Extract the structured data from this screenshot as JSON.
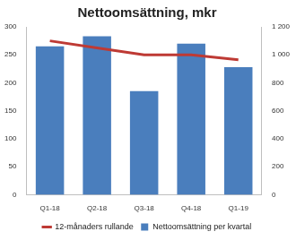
{
  "chart_data": {
    "type": "bar",
    "title": "Nettoomsättning, mkr",
    "categories": [
      "Q1-18",
      "Q2-18",
      "Q3-18",
      "Q4-18",
      "Q1-19"
    ],
    "series": [
      {
        "name": "Nettoomsättning per kvartal",
        "type": "bar",
        "color": "#4a7ebd",
        "values": [
          265,
          283,
          185,
          270,
          228
        ]
      },
      {
        "name": "12-månaders rullande",
        "type": "line",
        "color": "#be3a34",
        "axis": "y2",
        "values": [
          1100,
          1050,
          1000,
          1000,
          965
        ]
      }
    ],
    "ylim": [
      0,
      300
    ],
    "yticks": [
      0,
      50,
      100,
      150,
      200,
      250,
      300
    ],
    "y2lim": [
      0,
      1200
    ],
    "y2ticks": [
      0,
      200,
      400,
      600,
      800,
      {
        "value": 1000,
        "label": "1 000"
      },
      {
        "value": 1200,
        "label": "1 200"
      }
    ],
    "grid": false,
    "legend": "bottom"
  }
}
